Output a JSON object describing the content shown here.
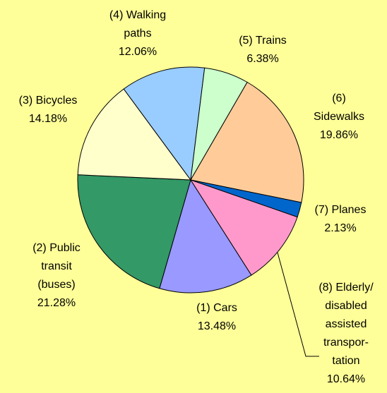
{
  "chart_data": {
    "type": "pie",
    "categories": [
      "(1) Cars",
      "(2) Public\ntransit\n(buses)",
      "(3) Bicycles",
      "(4) Walking\npaths",
      "(5) Trains",
      "(6)\nSidewalks",
      "(7) Planes",
      "(8) Elderly/\ndisabled\nassisted\ntranspor-\ntation"
    ],
    "values": [
      13.48,
      21.28,
      14.18,
      12.06,
      6.38,
      19.86,
      2.13,
      10.64
    ],
    "value_labels": [
      "13.48%",
      "21.28%",
      "14.18%",
      "12.06%",
      "6.38%",
      "19.86%",
      "2.13%",
      "10.64%"
    ],
    "colors": [
      "#9999ff",
      "#339966",
      "#ffffcc",
      "#99ccff",
      "#ccffcc",
      "#ffcc99",
      "#0066cc",
      "#ff99cc"
    ]
  }
}
